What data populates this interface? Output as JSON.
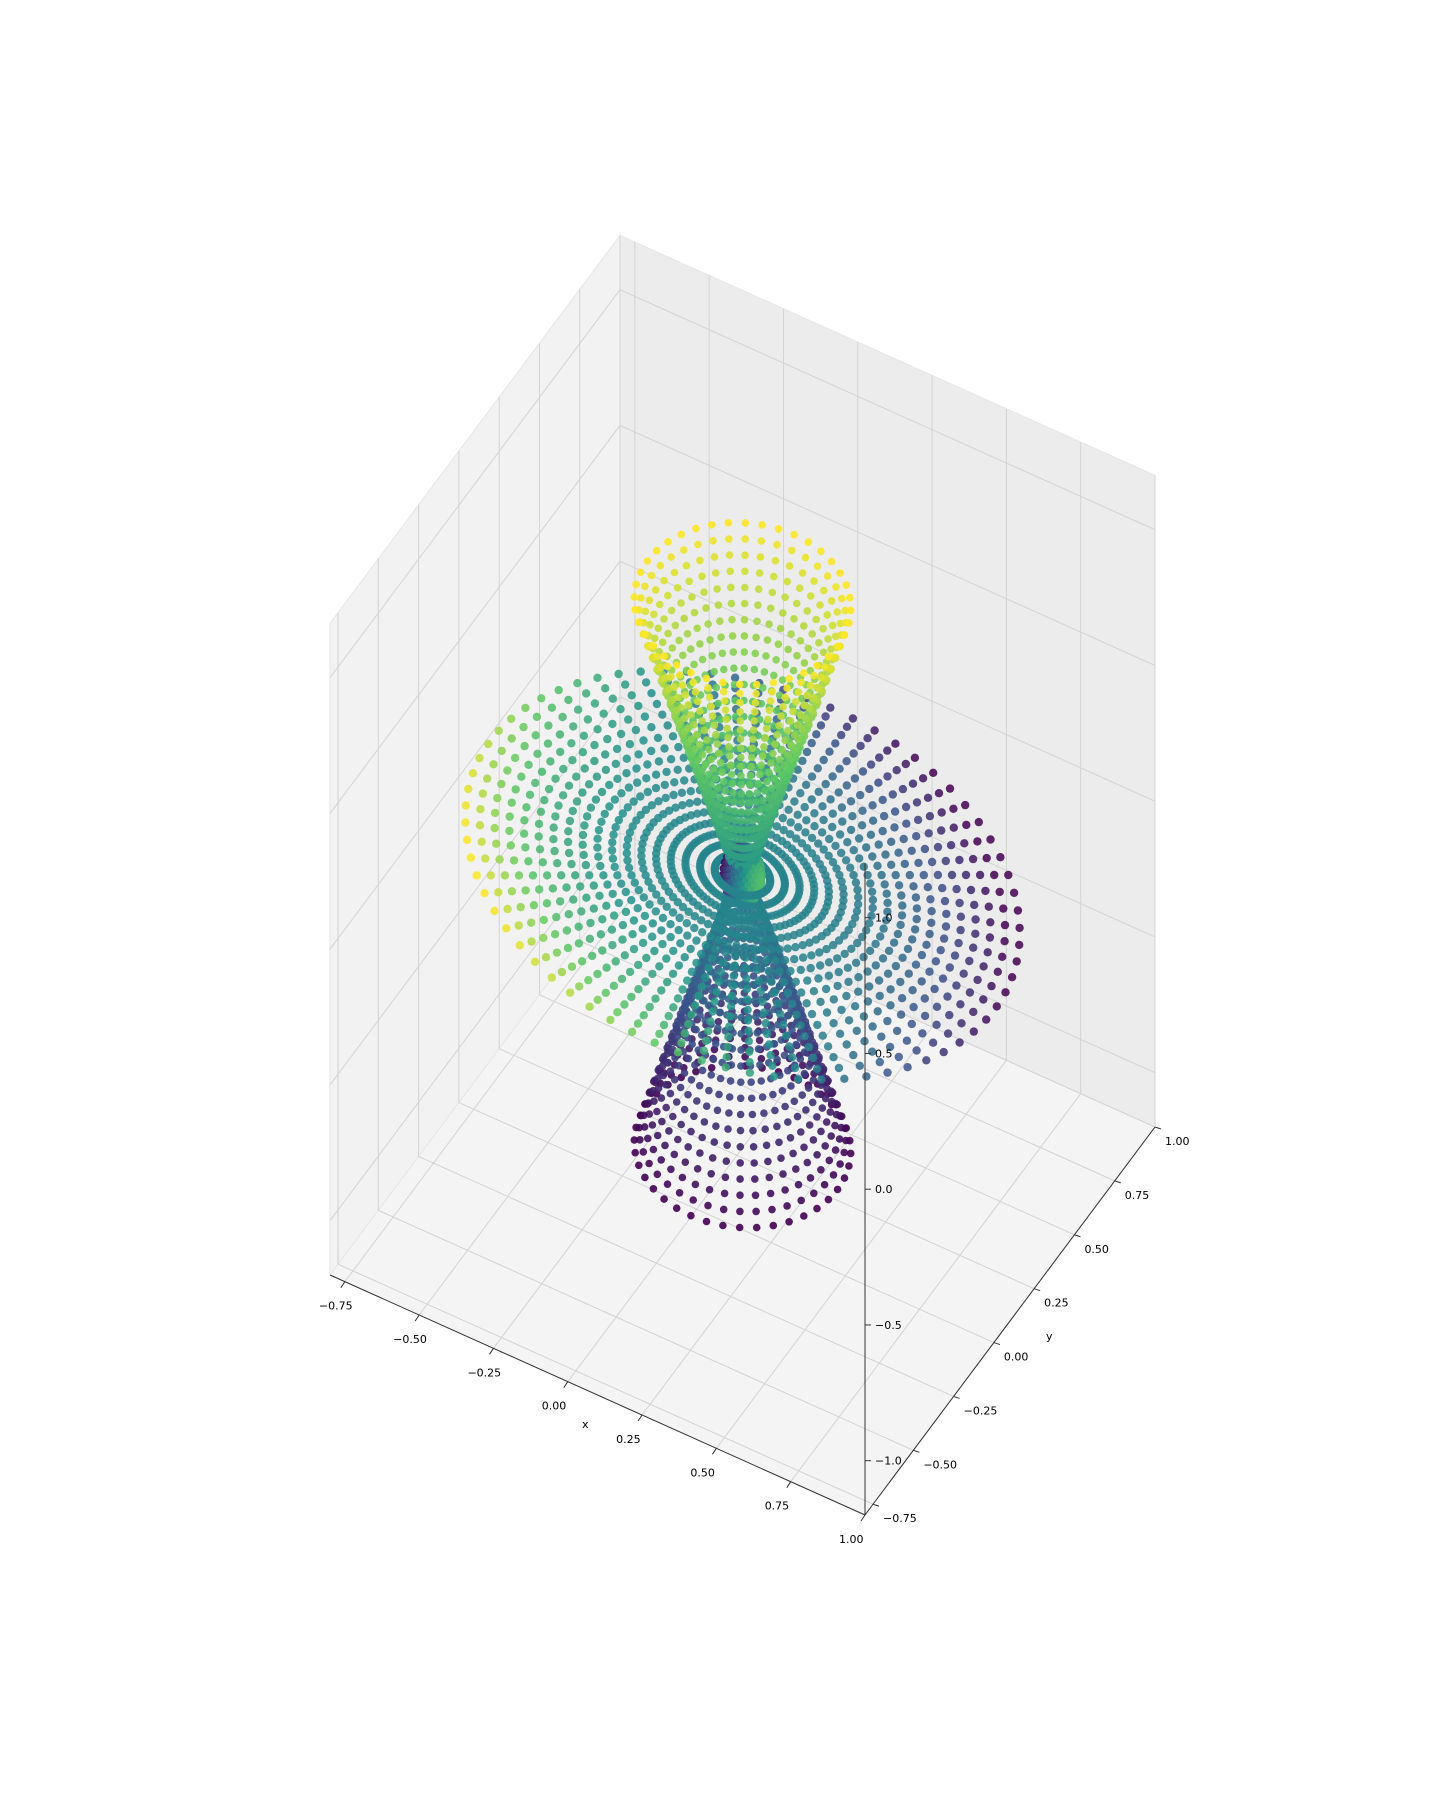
{
  "chart_data": {
    "type": "scatter",
    "projection": "3d",
    "title": "",
    "xlabel": "x",
    "ylabel": "y",
    "zlabel": "",
    "xlim": [
      -0.8,
      1.0
    ],
    "ylim": [
      -0.8,
      1.0
    ],
    "zlim": [
      -1.2,
      1.2
    ],
    "xticks": [
      "−0.75",
      "−0.50",
      "−0.25",
      "0.00",
      "0.25",
      "0.50",
      "0.75",
      "1.00"
    ],
    "yticks": [
      "−0.75",
      "−0.50",
      "−0.25",
      "0.00",
      "0.25",
      "0.50",
      "0.75",
      "1.00"
    ],
    "zticks": [
      "−1.0",
      "−0.5",
      "0.0",
      "0.5",
      "1.0"
    ],
    "grid": true,
    "colormap": "viridis",
    "color_by": "z",
    "colormap_stops": [
      "#440154",
      "#3b528b",
      "#21918c",
      "#5ec962",
      "#fde725"
    ],
    "pane_color": "#f2f2f2",
    "grid_color": "#d9d9d9",
    "series": [
      {
        "kind": "double-cone",
        "description_free": true,
        "z_range": [
          -1.0,
          1.0
        ],
        "radius_at_tips": 0.3,
        "rings": 44,
        "points_per_ring": 40
      },
      {
        "kind": "disc-spokes",
        "z_center": 0.0,
        "radius_range": [
          0.1,
          1.0
        ],
        "spokes": 72,
        "points_per_spoke": 18,
        "tilt_amplitude": 0.5
      },
      {
        "kind": "sphere",
        "center": [
          0.0,
          0.0,
          0.0
        ],
        "radius": 0.06,
        "points": 260
      }
    ]
  }
}
